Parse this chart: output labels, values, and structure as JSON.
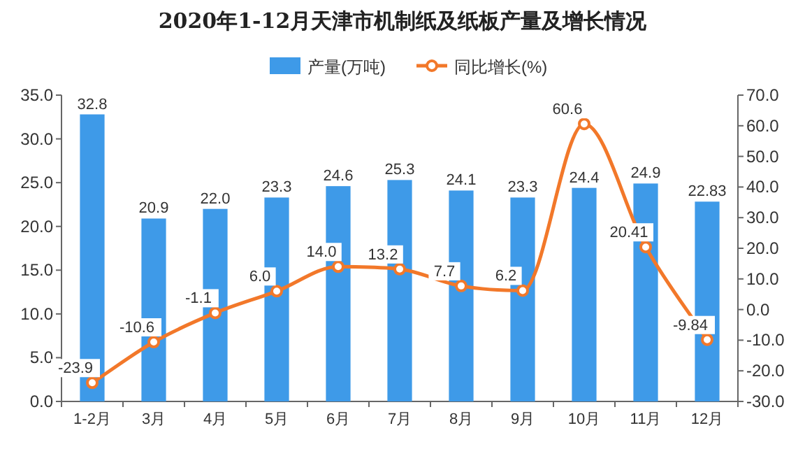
{
  "chart_data": {
    "type": "bar",
    "title": "2020年1-12月天津市机制纸及纸板产量及增长情况",
    "categories": [
      "1-2月",
      "3月",
      "4月",
      "5月",
      "6月",
      "7月",
      "8月",
      "9月",
      "10月",
      "11月",
      "12月"
    ],
    "series": [
      {
        "name": "产量(万吨)",
        "color": "#3e9ae8",
        "values": [
          32.8,
          20.9,
          22.0,
          23.3,
          24.6,
          25.3,
          24.1,
          23.3,
          24.4,
          24.9,
          22.83
        ],
        "value_labels": [
          "32.8",
          "20.9",
          "22.0",
          "23.3",
          "24.6",
          "25.3",
          "24.1",
          "23.3",
          "24.4",
          "24.9",
          "22.83"
        ]
      },
      {
        "name": "同比增长(%)",
        "type": "line",
        "axis": "y2",
        "color": "#f2782a",
        "marker": "circle",
        "values": [
          -23.9,
          -10.6,
          -1.1,
          6.0,
          14.0,
          13.2,
          7.7,
          6.2,
          60.6,
          20.41,
          -9.84
        ],
        "value_labels": [
          "-23.9",
          "-10.6",
          "-1.1",
          "6.0",
          "14.0",
          "13.2",
          "7.7",
          "6.2",
          "60.6",
          "20.41",
          "-9.84"
        ]
      }
    ],
    "ylim": [
      0,
      35
    ],
    "yticks": [
      {
        "value": 0,
        "label": "0.0"
      },
      {
        "value": 5,
        "label": "5.0"
      },
      {
        "value": 10,
        "label": "10.0"
      },
      {
        "value": 15,
        "label": "15.0"
      },
      {
        "value": 20,
        "label": "20.0"
      },
      {
        "value": 25,
        "label": "25.0"
      },
      {
        "value": 30,
        "label": "30.0"
      },
      {
        "value": 35,
        "label": "35.0"
      }
    ],
    "y2lim": [
      -30,
      70
    ],
    "y2ticks": [
      {
        "value": -30,
        "label": "-30.0"
      },
      {
        "value": -20,
        "label": "-20.0"
      },
      {
        "value": -10,
        "label": "-10.0"
      },
      {
        "value": 0,
        "label": "0.0"
      },
      {
        "value": 10,
        "label": "10.0"
      },
      {
        "value": 20,
        "label": "20.0"
      },
      {
        "value": 30,
        "label": "30.0"
      },
      {
        "value": 40,
        "label": "40.0"
      },
      {
        "value": 50,
        "label": "50.0"
      },
      {
        "value": 60,
        "label": "60.0"
      },
      {
        "value": 70,
        "label": "70.0"
      }
    ],
    "legend": "top",
    "grid": false
  }
}
